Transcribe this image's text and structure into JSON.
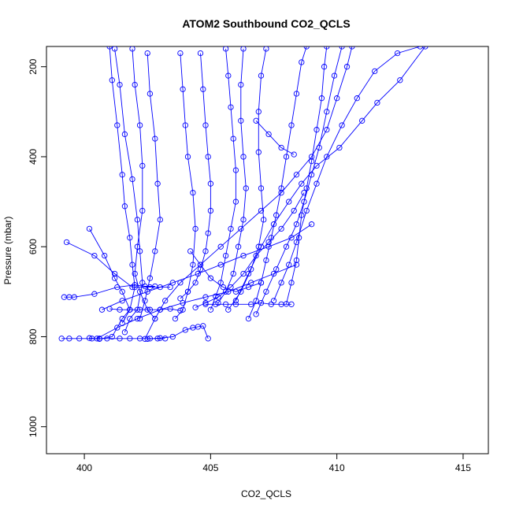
{
  "chart_data": {
    "type": "scatter",
    "title": "ATOM2 Southbound CO2_QCLS",
    "xlabel": "CO2_QCLS",
    "ylabel": "Pressure (mbar)",
    "xlim": [
      398.5,
      416
    ],
    "ylim": [
      1060,
      155
    ],
    "y_inverted": true,
    "x_ticks": [
      400,
      405,
      410,
      415
    ],
    "y_ticks": [
      200,
      400,
      600,
      800,
      1000
    ],
    "grid": false,
    "legend": "none",
    "marker": "open circle",
    "line_color": "#0000ff",
    "series": [
      {
        "points": [
          [
            401.0,
            155
          ],
          [
            401.1,
            230
          ],
          [
            401.3,
            330
          ],
          [
            401.5,
            440
          ],
          [
            401.6,
            510
          ],
          [
            401.8,
            580
          ],
          [
            401.9,
            640
          ],
          [
            402.0,
            690
          ],
          [
            401.8,
            740
          ],
          [
            401.5,
            770
          ]
        ]
      },
      {
        "points": [
          [
            401.2,
            160
          ],
          [
            401.4,
            240
          ],
          [
            401.6,
            350
          ],
          [
            401.9,
            450
          ],
          [
            402.1,
            540
          ],
          [
            402.2,
            610
          ],
          [
            402.3,
            680
          ],
          [
            402.1,
            740
          ],
          [
            401.8,
            760
          ],
          [
            401.6,
            790
          ]
        ]
      },
      {
        "points": [
          [
            401.9,
            160
          ],
          [
            402.0,
            240
          ],
          [
            402.2,
            330
          ],
          [
            402.3,
            420
          ],
          [
            402.3,
            520
          ],
          [
            402.1,
            600
          ],
          [
            402.0,
            660
          ],
          [
            402.2,
            700
          ],
          [
            402.5,
            740
          ],
          [
            402.8,
            760
          ]
        ]
      },
      {
        "points": [
          [
            402.5,
            170
          ],
          [
            402.6,
            260
          ],
          [
            402.8,
            360
          ],
          [
            402.9,
            460
          ],
          [
            403.0,
            540
          ],
          [
            402.8,
            610
          ],
          [
            402.6,
            670
          ],
          [
            402.4,
            720
          ],
          [
            402.2,
            760
          ]
        ]
      },
      {
        "points": [
          [
            400.2,
            560
          ],
          [
            400.8,
            620
          ],
          [
            401.2,
            670
          ],
          [
            401.5,
            700
          ],
          [
            401.8,
            740
          ],
          [
            401.5,
            760
          ],
          [
            401.1,
            800
          ],
          [
            400.6,
            805
          ],
          [
            400.2,
            803
          ]
        ]
      },
      {
        "points": [
          [
            399.2,
            712
          ],
          [
            399.4,
            712
          ],
          [
            399.6,
            712
          ],
          [
            400.4,
            705
          ],
          [
            401.3,
            690
          ],
          [
            402.0,
            685
          ],
          [
            402.4,
            688
          ],
          [
            402.8,
            688
          ]
        ]
      },
      {
        "points": [
          [
            399.3,
            590
          ],
          [
            400.4,
            620
          ],
          [
            401.2,
            660
          ],
          [
            401.9,
            690
          ],
          [
            402.6,
            690
          ],
          [
            403.0,
            690
          ],
          [
            403.4,
            690
          ]
        ]
      },
      {
        "points": [
          [
            399.1,
            804
          ],
          [
            399.4,
            804
          ],
          [
            399.8,
            804
          ],
          [
            400.3,
            804
          ],
          [
            400.6,
            804
          ],
          [
            400.9,
            804
          ],
          [
            401.4,
            804
          ],
          [
            401.8,
            804
          ],
          [
            402.2,
            804
          ],
          [
            402.6,
            804
          ],
          [
            402.9,
            804
          ],
          [
            403.2,
            804
          ]
        ]
      },
      {
        "points": [
          [
            401.0,
            738
          ],
          [
            401.4,
            740
          ],
          [
            401.8,
            740
          ],
          [
            402.2,
            740
          ],
          [
            402.6,
            740
          ],
          [
            403.0,
            740
          ],
          [
            403.4,
            738
          ],
          [
            403.8,
            742
          ]
        ]
      },
      {
        "points": [
          [
            402.5,
            805
          ],
          [
            403.0,
            803
          ],
          [
            403.5,
            800
          ],
          [
            404.0,
            785
          ],
          [
            404.3,
            780
          ],
          [
            404.5,
            778
          ],
          [
            404.7,
            776
          ],
          [
            404.9,
            804
          ]
        ]
      },
      {
        "points": [
          [
            403.8,
            715
          ],
          [
            404.1,
            700
          ],
          [
            404.4,
            680
          ],
          [
            404.6,
            650
          ],
          [
            404.8,
            610
          ],
          [
            404.9,
            570
          ],
          [
            405.0,
            520
          ],
          [
            405.0,
            460
          ],
          [
            404.9,
            400
          ],
          [
            404.8,
            330
          ],
          [
            404.7,
            250
          ],
          [
            404.6,
            170
          ]
        ]
      },
      {
        "points": [
          [
            403.6,
            760
          ],
          [
            403.9,
            740
          ],
          [
            404.1,
            700
          ],
          [
            404.3,
            640
          ],
          [
            404.4,
            560
          ],
          [
            404.3,
            480
          ],
          [
            404.1,
            400
          ],
          [
            404.0,
            330
          ],
          [
            403.9,
            250
          ],
          [
            403.8,
            170
          ]
        ]
      },
      {
        "points": [
          [
            405.0,
            740
          ],
          [
            405.2,
            710
          ],
          [
            405.4,
            680
          ],
          [
            405.6,
            620
          ],
          [
            405.8,
            560
          ],
          [
            406.0,
            500
          ],
          [
            406.0,
            430
          ],
          [
            405.9,
            360
          ],
          [
            405.8,
            290
          ],
          [
            405.7,
            220
          ],
          [
            405.6,
            160
          ]
        ]
      },
      {
        "points": [
          [
            405.3,
            725
          ],
          [
            405.6,
            700
          ],
          [
            405.9,
            660
          ],
          [
            406.1,
            600
          ],
          [
            406.3,
            540
          ],
          [
            406.4,
            470
          ],
          [
            406.3,
            400
          ],
          [
            406.2,
            320
          ],
          [
            406.2,
            240
          ],
          [
            406.3,
            160
          ]
        ]
      },
      {
        "points": [
          [
            404.8,
            728
          ],
          [
            405.2,
            728
          ],
          [
            405.6,
            728
          ],
          [
            406.0,
            728
          ],
          [
            406.6,
            728
          ],
          [
            407.0,
            725
          ],
          [
            407.4,
            728
          ],
          [
            407.8,
            728
          ],
          [
            408.2,
            728
          ]
        ]
      },
      {
        "points": [
          [
            406.5,
            760
          ],
          [
            406.8,
            720
          ],
          [
            407.0,
            680
          ],
          [
            407.2,
            630
          ],
          [
            407.4,
            580
          ],
          [
            407.6,
            530
          ],
          [
            407.8,
            470
          ],
          [
            408.0,
            400
          ],
          [
            408.2,
            330
          ],
          [
            408.4,
            260
          ],
          [
            408.6,
            190
          ],
          [
            408.8,
            155
          ]
        ]
      },
      {
        "points": [
          [
            406.8,
            750
          ],
          [
            407.2,
            700
          ],
          [
            407.6,
            650
          ],
          [
            408.0,
            600
          ],
          [
            408.4,
            550
          ],
          [
            408.7,
            500
          ],
          [
            409.0,
            440
          ],
          [
            409.3,
            380
          ],
          [
            409.6,
            300
          ],
          [
            409.9,
            220
          ],
          [
            410.2,
            155
          ]
        ]
      },
      {
        "points": [
          [
            407.5,
            720
          ],
          [
            407.8,
            680
          ],
          [
            408.1,
            640
          ],
          [
            408.4,
            590
          ],
          [
            408.8,
            520
          ],
          [
            409.2,
            460
          ],
          [
            409.6,
            400
          ],
          [
            410.2,
            330
          ],
          [
            410.8,
            270
          ],
          [
            411.5,
            210
          ],
          [
            412.4,
            170
          ],
          [
            413.3,
            155
          ]
        ]
      },
      {
        "points": [
          [
            406.0,
            720
          ],
          [
            406.5,
            660
          ],
          [
            407.0,
            600
          ],
          [
            407.5,
            550
          ],
          [
            408.1,
            500
          ],
          [
            408.6,
            460
          ],
          [
            409.2,
            420
          ],
          [
            410.1,
            380
          ],
          [
            411.0,
            320
          ],
          [
            411.6,
            280
          ],
          [
            412.5,
            230
          ],
          [
            413.5,
            155
          ]
        ]
      },
      {
        "points": [
          [
            406.8,
            320
          ],
          [
            407.3,
            350
          ],
          [
            407.8,
            380
          ],
          [
            408.3,
            395
          ]
        ]
      },
      {
        "points": [
          [
            405.7,
            740
          ],
          [
            406.2,
            700
          ],
          [
            406.6,
            650
          ],
          [
            406.9,
            600
          ],
          [
            407.1,
            540
          ],
          [
            407.0,
            470
          ],
          [
            406.9,
            390
          ],
          [
            406.9,
            300
          ],
          [
            407.0,
            220
          ],
          [
            407.2,
            160
          ]
        ]
      },
      {
        "points": [
          [
            402.4,
            805
          ],
          [
            402.8,
            760
          ],
          [
            403.2,
            720
          ],
          [
            403.8,
            680
          ],
          [
            404.6,
            640
          ],
          [
            405.4,
            600
          ],
          [
            406.2,
            560
          ],
          [
            407.0,
            520
          ],
          [
            407.8,
            480
          ],
          [
            408.4,
            440
          ],
          [
            409.0,
            400
          ],
          [
            409.6,
            340
          ],
          [
            410.0,
            270
          ],
          [
            410.4,
            200
          ],
          [
            410.6,
            155
          ]
        ]
      },
      {
        "points": [
          [
            400.7,
            740
          ],
          [
            401.5,
            720
          ],
          [
            402.5,
            700
          ],
          [
            403.5,
            680
          ],
          [
            404.5,
            660
          ],
          [
            405.4,
            640
          ],
          [
            406.3,
            620
          ],
          [
            407.3,
            600
          ],
          [
            408.2,
            580
          ],
          [
            409.0,
            550
          ]
        ]
      },
      {
        "points": [
          [
            408.0,
            727
          ],
          [
            408.2,
            680
          ],
          [
            408.4,
            630
          ],
          [
            408.5,
            580
          ],
          [
            408.6,
            530
          ],
          [
            408.8,
            470
          ],
          [
            409.0,
            410
          ],
          [
            409.2,
            340
          ],
          [
            409.4,
            270
          ],
          [
            409.5,
            200
          ],
          [
            409.6,
            155
          ]
        ]
      },
      {
        "points": [
          [
            400.5,
            804
          ],
          [
            401.3,
            780
          ],
          [
            402.1,
            760
          ],
          [
            403.0,
            740
          ],
          [
            403.9,
            725
          ],
          [
            404.8,
            712
          ],
          [
            405.7,
            700
          ],
          [
            406.6,
            680
          ],
          [
            407.5,
            660
          ],
          [
            408.4,
            640
          ]
        ]
      },
      {
        "points": [
          [
            404.2,
            610
          ],
          [
            404.6,
            640
          ],
          [
            405.0,
            670
          ],
          [
            405.5,
            690
          ],
          [
            406.0,
            700
          ],
          [
            406.5,
            690
          ],
          [
            407.0,
            680
          ]
        ]
      },
      {
        "points": [
          [
            404.4,
            735
          ],
          [
            404.8,
            725
          ],
          [
            405.3,
            712
          ],
          [
            405.8,
            690
          ],
          [
            406.3,
            660
          ],
          [
            406.8,
            620
          ],
          [
            407.3,
            590
          ],
          [
            407.8,
            560
          ],
          [
            408.3,
            520
          ],
          [
            408.7,
            480
          ]
        ]
      }
    ]
  }
}
